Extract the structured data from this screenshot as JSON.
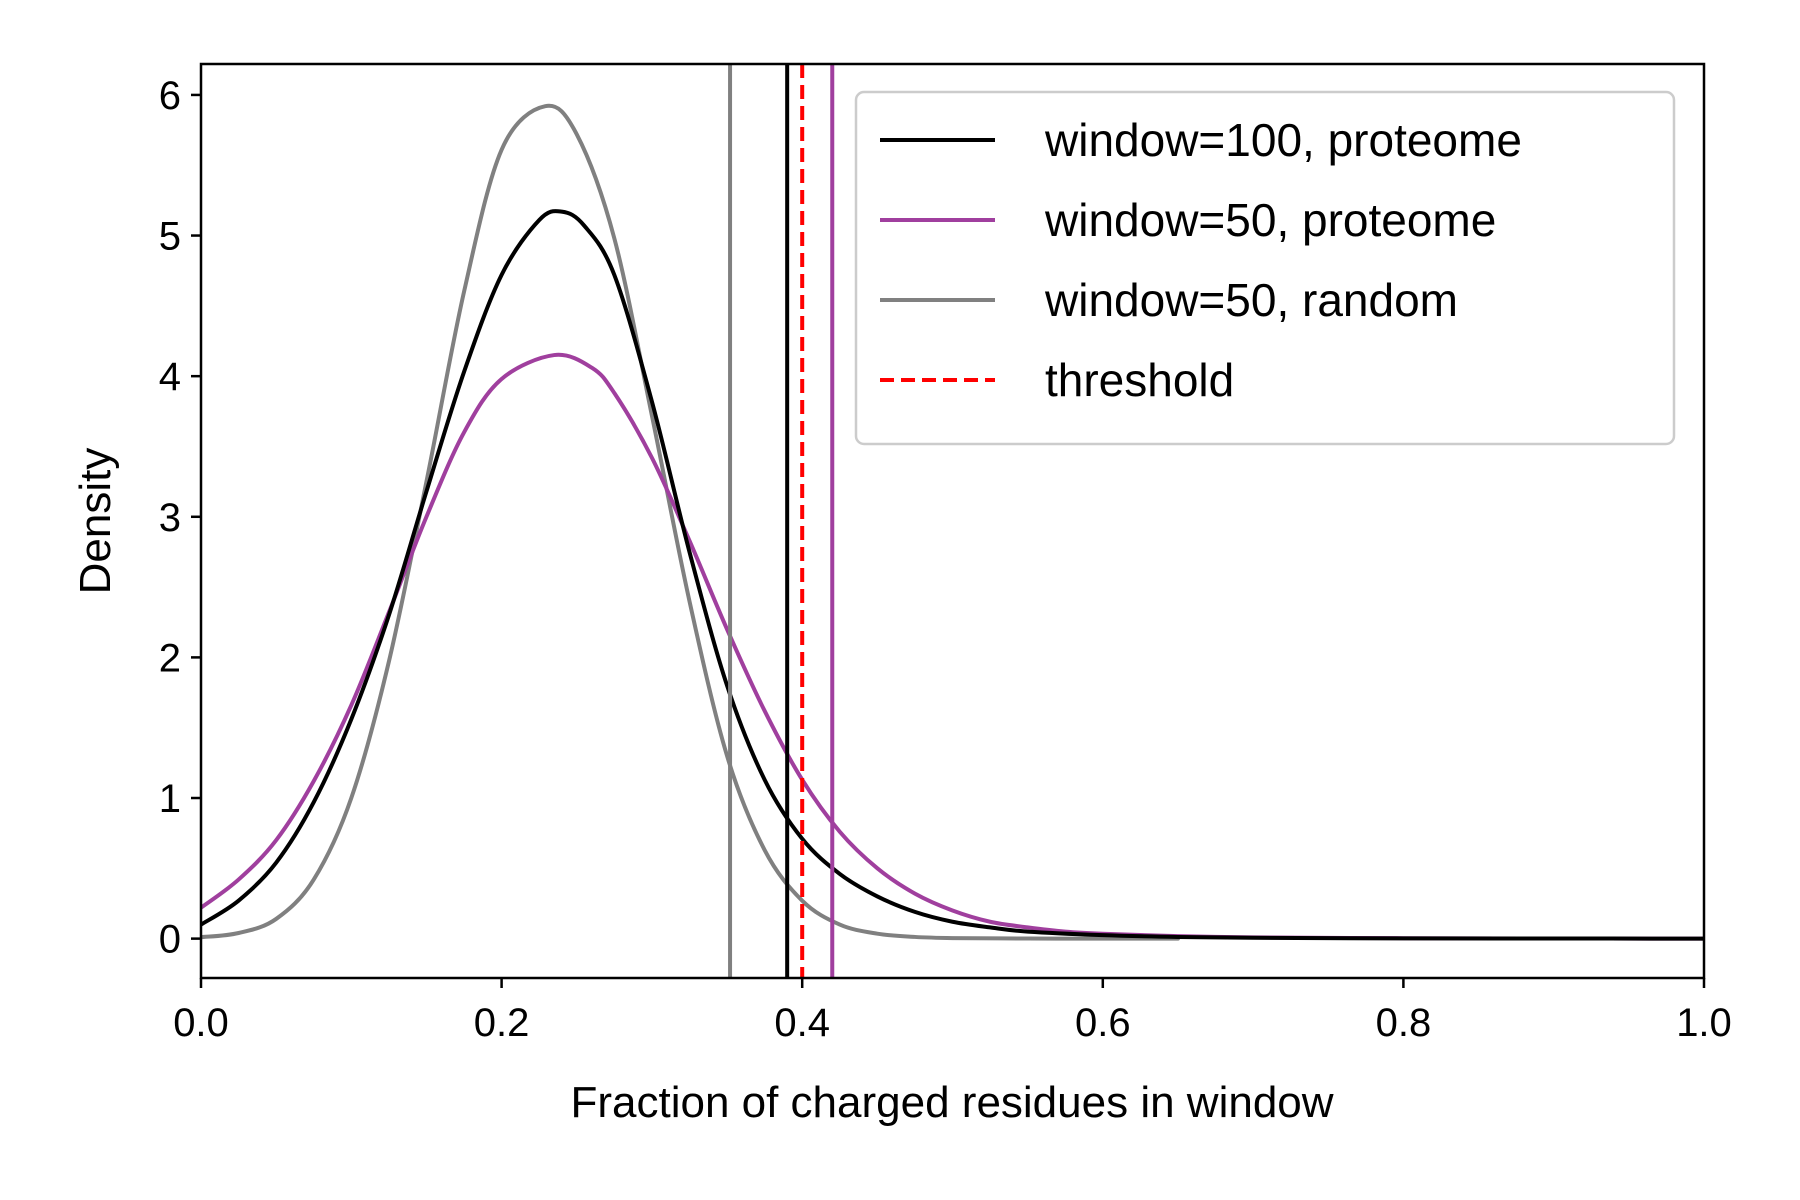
{
  "chart_data": {
    "type": "line",
    "title": "",
    "xlabel": "Fraction of charged residues in window",
    "ylabel": "Density",
    "xlim": [
      0.0,
      1.0
    ],
    "ylim": [
      -0.28,
      6.22
    ],
    "x_ticks": [
      0.0,
      0.2,
      0.4,
      0.6,
      0.8,
      1.0
    ],
    "x_tick_labels": [
      "0.0",
      "0.2",
      "0.4",
      "0.6",
      "0.8",
      "1.0"
    ],
    "y_ticks": [
      0,
      1,
      2,
      3,
      4,
      5,
      6
    ],
    "y_tick_labels": [
      "0",
      "1",
      "2",
      "3",
      "4",
      "5",
      "6"
    ],
    "grid": false,
    "legend_position": "upper-right",
    "series": [
      {
        "name": "window=100, proteome",
        "color": "#000000",
        "dash": "solid",
        "x": [
          0.0,
          0.025,
          0.05,
          0.075,
          0.1,
          0.125,
          0.15,
          0.175,
          0.2,
          0.225,
          0.24,
          0.255,
          0.275,
          0.3,
          0.325,
          0.35,
          0.375,
          0.4,
          0.425,
          0.45,
          0.475,
          0.5,
          0.525,
          0.55,
          0.6,
          0.65,
          0.7,
          0.8,
          0.9,
          1.0
        ],
        "y": [
          0.1,
          0.27,
          0.54,
          0.97,
          1.56,
          2.3,
          3.18,
          4.03,
          4.72,
          5.11,
          5.17,
          5.07,
          4.72,
          3.82,
          2.75,
          1.8,
          1.13,
          0.71,
          0.46,
          0.3,
          0.19,
          0.12,
          0.08,
          0.05,
          0.025,
          0.012,
          0.006,
          0.002,
          0.001,
          0.0
        ]
      },
      {
        "name": "window=50, proteome",
        "color": "#a03f9e",
        "dash": "solid",
        "x": [
          0.0,
          0.025,
          0.05,
          0.075,
          0.1,
          0.125,
          0.15,
          0.175,
          0.2,
          0.235,
          0.26,
          0.275,
          0.3,
          0.325,
          0.35,
          0.375,
          0.4,
          0.425,
          0.45,
          0.475,
          0.5,
          0.525,
          0.55,
          0.575,
          0.6,
          0.65,
          0.7,
          0.8,
          0.9,
          1.0
        ],
        "y": [
          0.22,
          0.42,
          0.7,
          1.12,
          1.66,
          2.32,
          3.0,
          3.6,
          3.98,
          4.15,
          4.06,
          3.88,
          3.42,
          2.83,
          2.2,
          1.62,
          1.13,
          0.76,
          0.5,
          0.32,
          0.2,
          0.12,
          0.08,
          0.05,
          0.035,
          0.018,
          0.009,
          0.003,
          0.001,
          0.0
        ]
      },
      {
        "name": "window=50, random",
        "color": "#808080",
        "dash": "solid",
        "x": [
          0.0,
          0.025,
          0.05,
          0.075,
          0.1,
          0.125,
          0.15,
          0.175,
          0.2,
          0.229,
          0.25,
          0.275,
          0.3,
          0.325,
          0.35,
          0.375,
          0.4,
          0.425,
          0.45,
          0.475,
          0.5,
          0.55,
          0.6,
          0.65
        ],
        "y": [
          0.01,
          0.04,
          0.14,
          0.42,
          1.0,
          1.97,
          3.25,
          4.6,
          5.61,
          5.92,
          5.72,
          4.98,
          3.72,
          2.4,
          1.3,
          0.63,
          0.27,
          0.1,
          0.035,
          0.012,
          0.004,
          0.001,
          0.0,
          0.0
        ]
      }
    ],
    "vertical_lines": [
      {
        "x": 0.352,
        "color": "#808080",
        "dash": "solid"
      },
      {
        "x": 0.39,
        "color": "#000000",
        "dash": "solid"
      },
      {
        "x": 0.42,
        "color": "#a03f9e",
        "dash": "solid"
      },
      {
        "x": 0.4,
        "color": "#ff0000",
        "dash": "dashed",
        "name": "threshold"
      }
    ],
    "legend": [
      {
        "label": "window=100, proteome",
        "color": "#000000",
        "dash": "solid"
      },
      {
        "label": "window=50, proteome",
        "color": "#a03f9e",
        "dash": "solid"
      },
      {
        "label": "window=50, random",
        "color": "#808080",
        "dash": "solid"
      },
      {
        "label": "threshold",
        "color": "#ff0000",
        "dash": "dashed"
      }
    ]
  }
}
